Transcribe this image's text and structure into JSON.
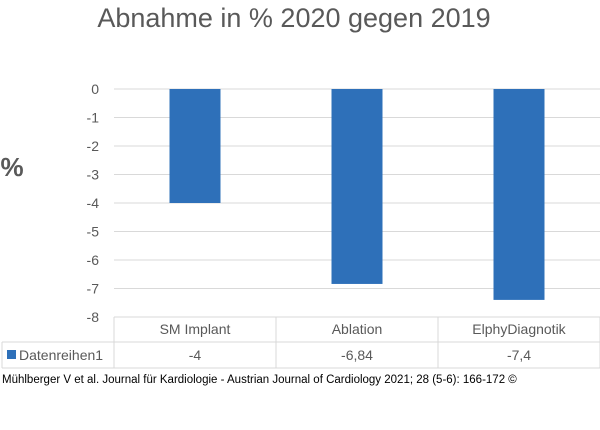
{
  "chart_data": {
    "type": "bar",
    "title": "Abnahme in % 2020 gegen 2019",
    "ylabel": "%",
    "xlabel": "",
    "categories": [
      "SM Implant",
      "Ablation",
      "ElphyDiagnotik"
    ],
    "series": [
      {
        "name": "Datenreihen1",
        "values": [
          -4,
          -6.84,
          -7.4
        ],
        "labels": [
          "-4",
          "-6,84",
          "-7,4"
        ],
        "color": "#2e70b9"
      }
    ],
    "ylim": [
      -8,
      0
    ],
    "yticks": [
      0,
      -1,
      -2,
      -3,
      -4,
      -5,
      -6,
      -7,
      -8
    ],
    "grid": true,
    "legend": "data-table-left",
    "data_table": true
  },
  "caption": "Mühlberger V et al. Journal für Kardiologie - Austrian Journal of Cardiology 2021; 28 (5-6): 166-172 ©"
}
